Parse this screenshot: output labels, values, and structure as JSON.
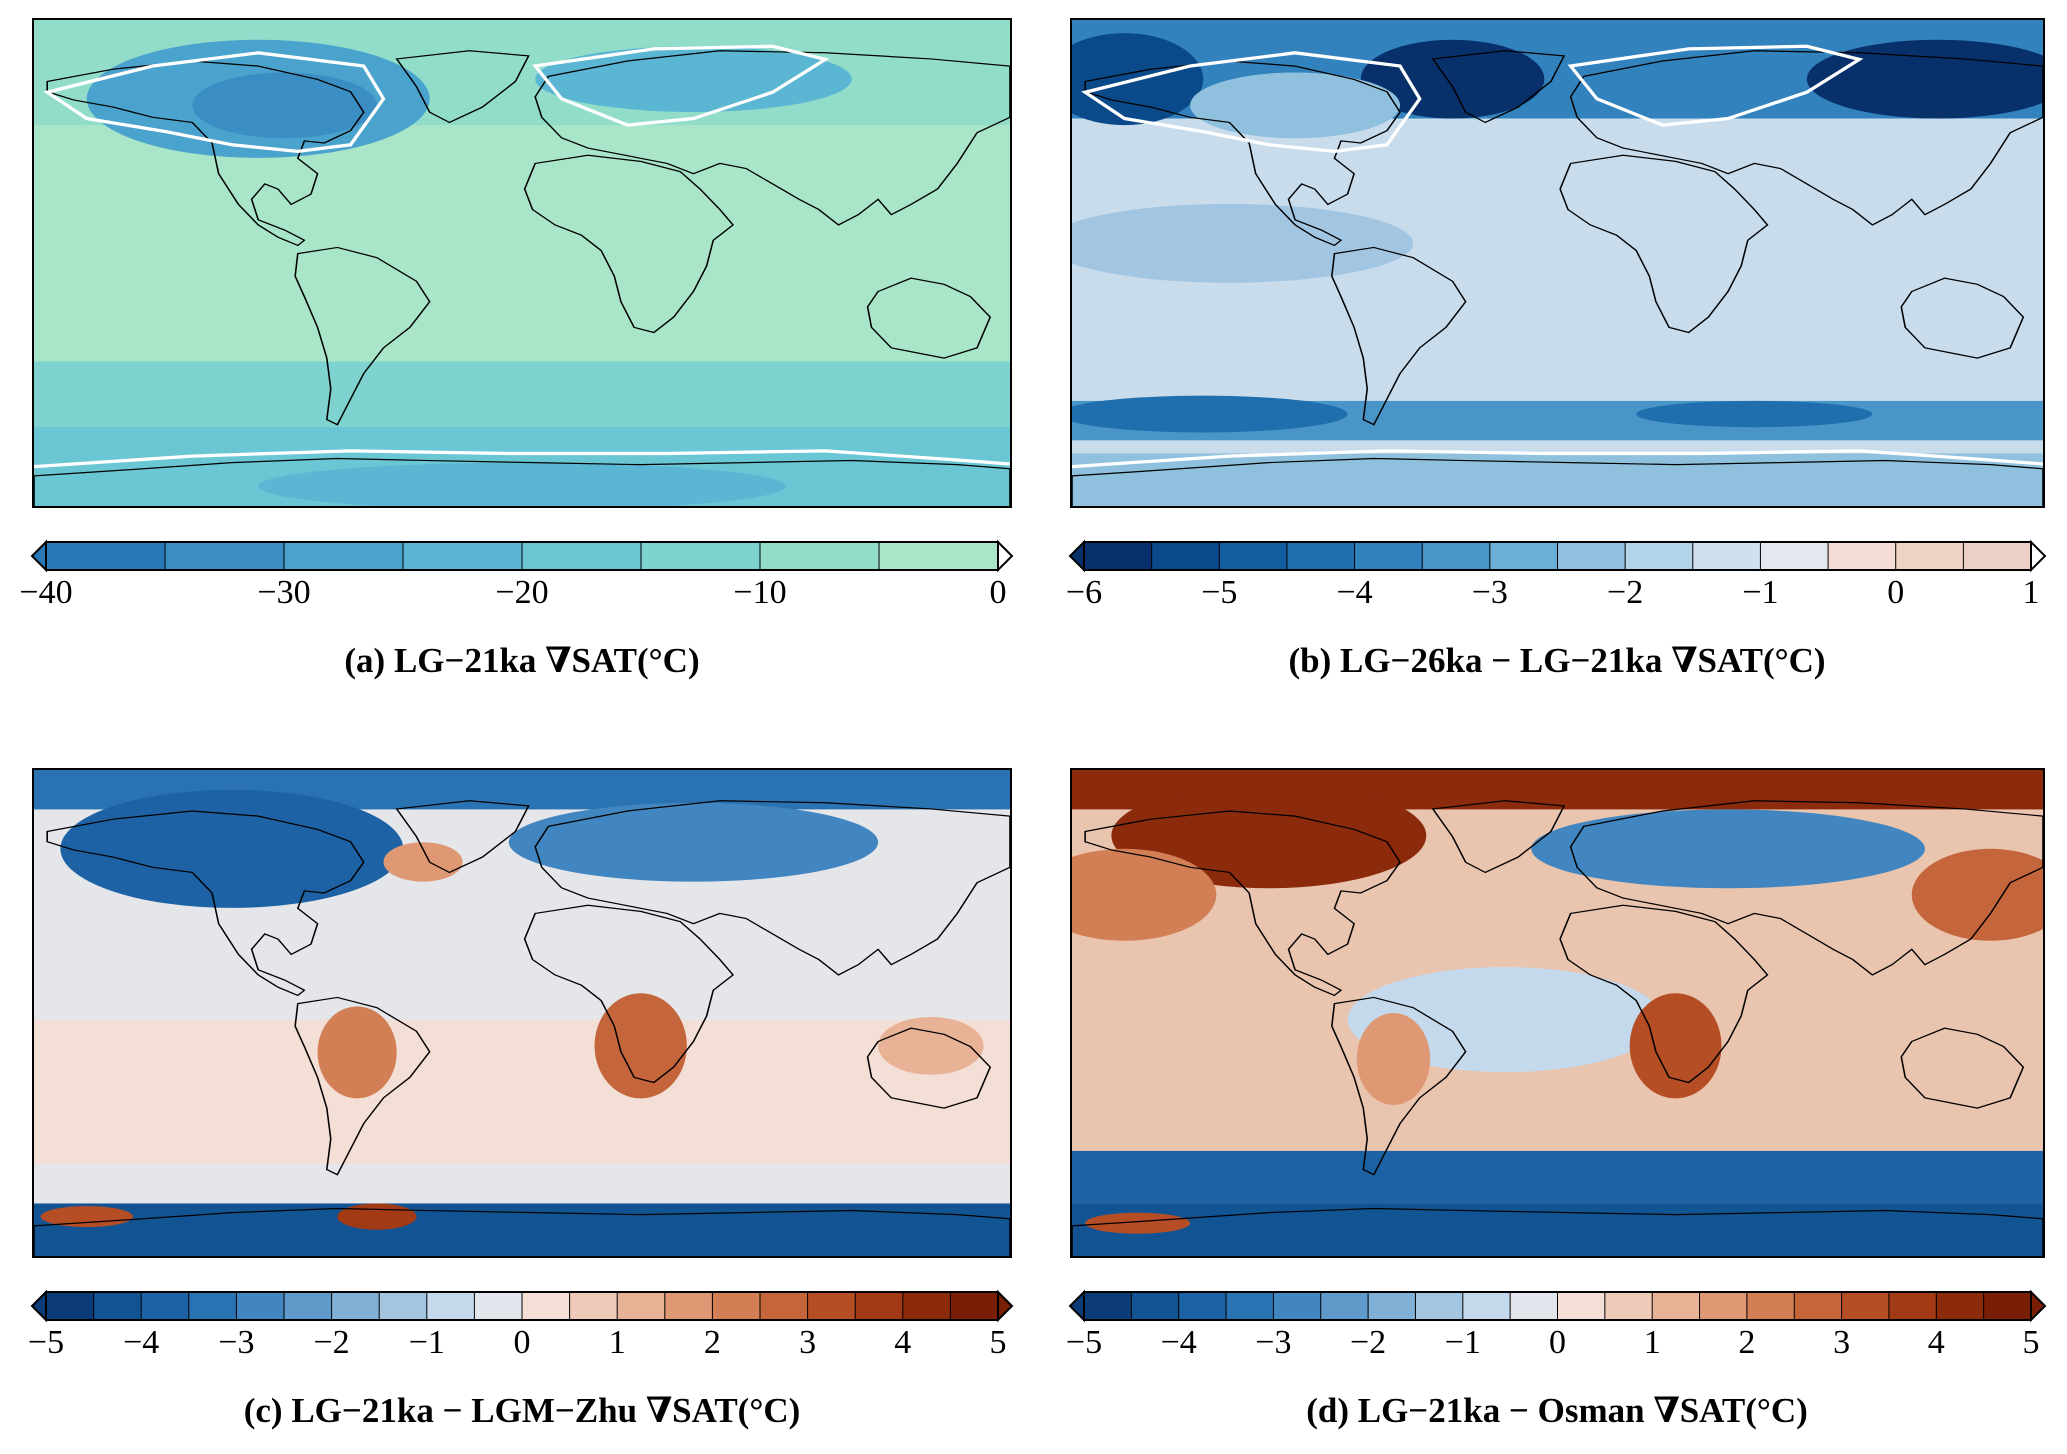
{
  "panels": [
    {
      "id": "a",
      "caption": "(a) LG−21ka ∇SAT(°C)",
      "ticks": [
        "−40",
        "−30",
        "−20",
        "−10",
        "0"
      ],
      "tick_values": [
        -40,
        -30,
        -20,
        -10,
        0
      ],
      "range": [
        -40,
        0
      ],
      "colors": [
        "#2b78b8",
        "#3a8ec4",
        "#4aa3cc",
        "#5ab6d2",
        "#6bc6d4",
        "#7ed2cf",
        "#92dcca",
        "#a9e5c8"
      ],
      "base_color": "#a9e5c8",
      "ice_outline": "#ffffff"
    },
    {
      "id": "b",
      "caption": "(b) LG−26ka − LG−21ka ∇SAT(°C)",
      "ticks": [
        "−6",
        "−5",
        "−4",
        "−3",
        "−2",
        "−1",
        "0",
        "1"
      ],
      "tick_values": [
        -6,
        -5,
        -4,
        -3,
        -2,
        -1,
        0,
        1
      ],
      "range": [
        -6,
        1
      ],
      "colors": [
        "#08306b",
        "#0b4a8a",
        "#135ea0",
        "#1f6fae",
        "#3182bd",
        "#4a95c8",
        "#6baed6",
        "#8fc1de",
        "#b3d3e8",
        "#cfe1ef",
        "#e3e8ee",
        "#f3ddd5",
        "#f0d3c7",
        "#ecd0c6"
      ],
      "base_color": "#c9dcec",
      "ice_outline": "#ffffff"
    },
    {
      "id": "c",
      "caption": "(c) LG−21ka − LGM−Zhu ∇SAT(°C)",
      "ticks": [
        "−5",
        "−4",
        "−3",
        "−2",
        "−1",
        "0",
        "1",
        "2",
        "3",
        "4",
        "5"
      ],
      "tick_values": [
        -5,
        -4,
        -3,
        -2,
        -1,
        0,
        1,
        2,
        3,
        4,
        5
      ],
      "range": [
        -5,
        5
      ],
      "colors": [
        "#0b3c78",
        "#125394",
        "#1c62a4",
        "#2a73b2",
        "#4186c0",
        "#5f9acb",
        "#80b0d6",
        "#a2c5e2",
        "#c4d9ec",
        "#e2e6ec",
        "#f4dfd6",
        "#f0cab8",
        "#e8b296",
        "#de9974",
        "#d27f55",
        "#c5653b",
        "#b54d25",
        "#a23a16",
        "#8c2a0c",
        "#7a1f06"
      ],
      "base_color": "#e4e6ea"
    },
    {
      "id": "d",
      "caption": "(d) LG−21ka − Osman ∇SAT(°C)",
      "ticks": [
        "−5",
        "−4",
        "−3",
        "−2",
        "−1",
        "0",
        "1",
        "2",
        "3",
        "4",
        "5"
      ],
      "tick_values": [
        -5,
        -4,
        -3,
        -2,
        -1,
        0,
        1,
        2,
        3,
        4,
        5
      ],
      "range": [
        -5,
        5
      ],
      "colors": [
        "#0b3c78",
        "#125394",
        "#1c62a4",
        "#2a73b2",
        "#4186c0",
        "#5f9acb",
        "#80b0d6",
        "#a2c5e2",
        "#c4d9ec",
        "#e2e6ec",
        "#f4dfd6",
        "#f0cab8",
        "#e8b296",
        "#de9974",
        "#d27f55",
        "#c5653b",
        "#b54d25",
        "#a23a16",
        "#8c2a0c",
        "#7a1f06"
      ],
      "base_color": "#e9c4ae"
    }
  ]
}
